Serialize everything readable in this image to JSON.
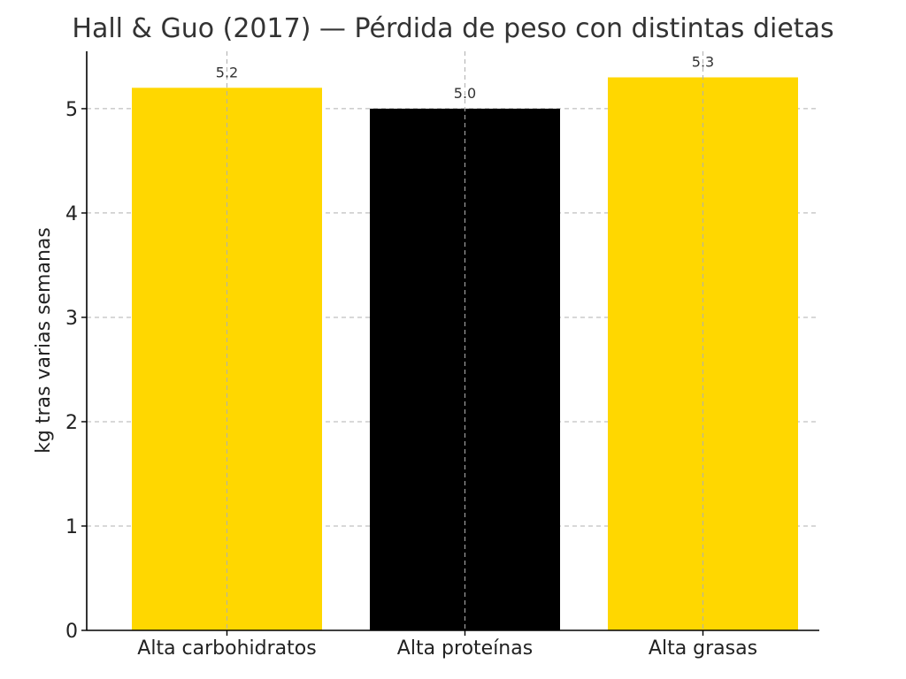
{
  "chart_data": {
    "type": "bar",
    "title": "Hall & Guo (2017) — Pérdida de peso con distintas dietas",
    "xlabel": "",
    "ylabel": "kg tras varias semanas",
    "categories": [
      "Alta carbohidratos",
      "Alta proteínas",
      "Alta grasas"
    ],
    "values": [
      5.2,
      5.0,
      5.3
    ],
    "value_labels": [
      "5.2",
      "5.0",
      "5.3"
    ],
    "colors": [
      "#FFD700",
      "#000000",
      "#FFD700"
    ],
    "ylim": [
      0,
      5.55
    ],
    "yticks": [
      0,
      1,
      2,
      3,
      4,
      5
    ],
    "grid": true
  }
}
